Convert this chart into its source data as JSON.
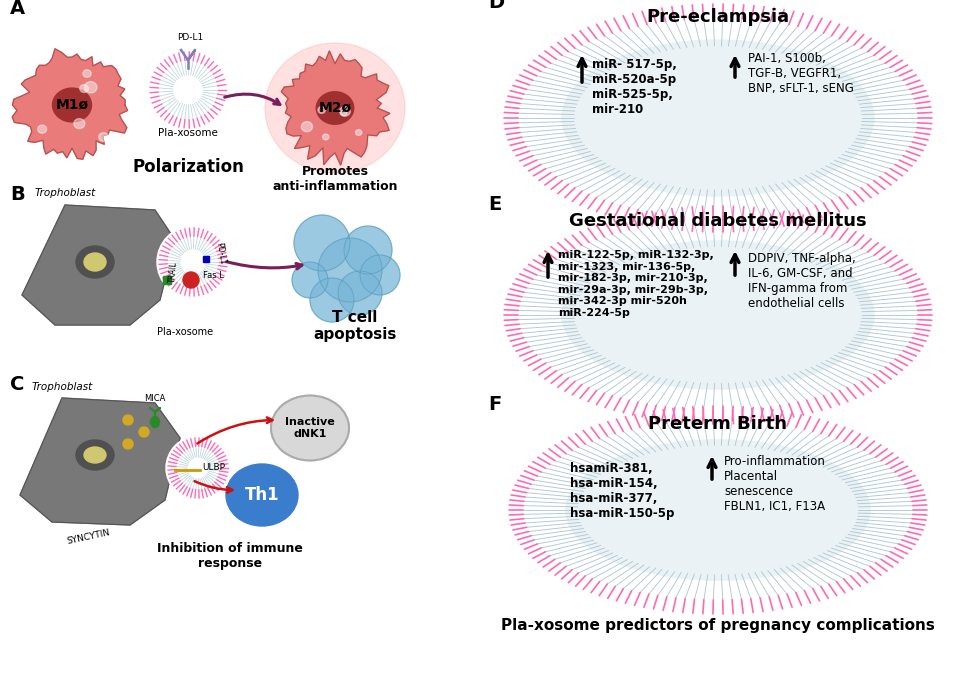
{
  "bg_color": "#ffffff",
  "panel_D": {
    "title": "Pre-eclampsia",
    "left_text": "miR- 517-5p,\nmiR-520a-5p\nmiR-525-5p,\nmir-210",
    "right_text": "PAI-1, S100b,\nTGF-B, VEGFR1,\nBNP, sFLT-1, sENG"
  },
  "panel_E": {
    "title": "Gestational diabetes mellitus",
    "left_text": "miR-122-5p, miR-132-3p,\nmir-1323, mir-136-5p,\nmir-182-3p, mir-210-3p,\nmir-29a-3p, mir-29b-3p,\nmir-342-3p mir-520h\nmiR-224-5p",
    "right_text": "DDPIV, TNF-alpha,\nIL-6, GM-CSF, and\nIFN-gamma from\nendothelial cells"
  },
  "panel_F": {
    "title": "Preterm Birth",
    "left_text": "hsamiR-381,\nhsa-miR-154,\nhsa-miR-377,\nhsa-miR-150-5p",
    "right_text": "Pro-inflammation\nPlacental\nsenescence\nFBLN1, IC1, F13A"
  },
  "bottom_text": "Pla-xosome predictors of pregnancy complications"
}
